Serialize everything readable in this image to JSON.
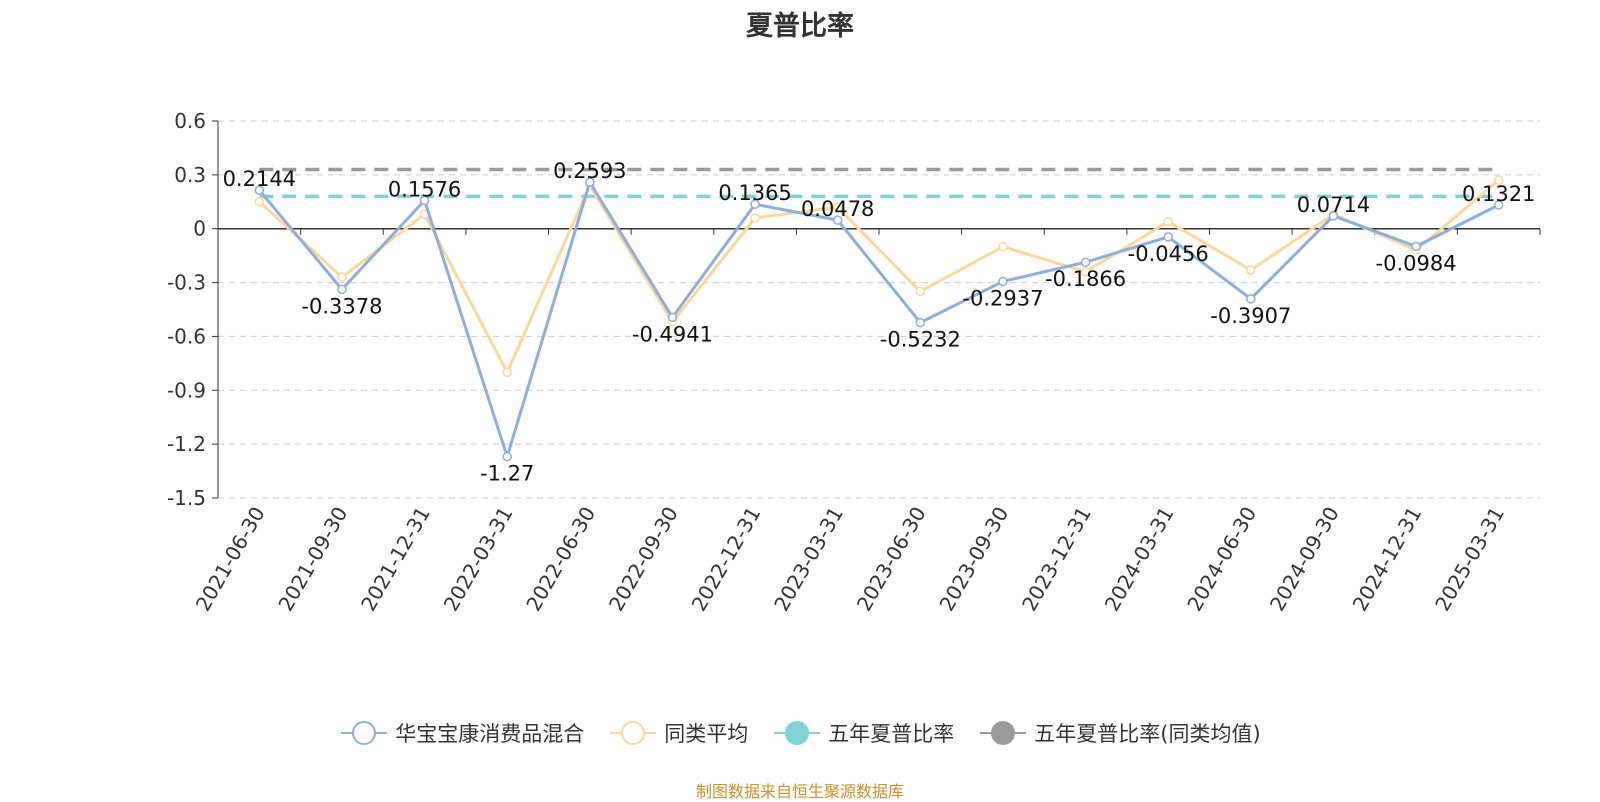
{
  "chart_data": {
    "type": "line",
    "title": "夏普比率",
    "categories": [
      "2021-06-30",
      "2021-09-30",
      "2021-12-31",
      "2022-03-31",
      "2022-06-30",
      "2022-09-30",
      "2022-12-31",
      "2023-03-31",
      "2023-06-30",
      "2023-09-30",
      "2023-12-31",
      "2024-03-31",
      "2024-06-30",
      "2024-09-30",
      "2024-12-31",
      "2025-03-31"
    ],
    "ylim": [
      -1.5,
      0.6
    ],
    "yticks": [
      0.6,
      0.3,
      0,
      -0.3,
      -0.6,
      -0.9,
      -1.2,
      -1.5
    ],
    "series": [
      {
        "name": "华宝宝康消费品混合",
        "color": "#8eaedb",
        "values": [
          0.2144,
          -0.3378,
          0.1576,
          -1.27,
          0.2593,
          -0.4941,
          0.1365,
          0.0478,
          -0.5232,
          -0.2937,
          -0.1866,
          -0.0456,
          -0.3907,
          0.0714,
          -0.0984,
          0.1321
        ],
        "labels": [
          "0.2144",
          "-0.3378",
          "0.1576",
          "-1.27",
          "0.2593",
          "-0.4941",
          "0.1365",
          "0.0478",
          "-0.5232",
          "-0.2937",
          "-0.1866",
          "-0.0456",
          "-0.3907",
          "0.0714",
          "-0.0984",
          "0.1321"
        ]
      },
      {
        "name": "同类平均",
        "color": "#fcd898",
        "values": [
          0.15,
          -0.27,
          0.08,
          -0.8,
          0.24,
          -0.52,
          0.06,
          0.12,
          -0.35,
          -0.1,
          -0.24,
          0.04,
          -0.23,
          0.08,
          -0.12,
          0.27
        ]
      },
      {
        "name": "五年夏普比率",
        "color": "#7fd3d5",
        "constant": 0.18
      },
      {
        "name": "五年夏普比率(同类均值)",
        "color": "#9a9a9a",
        "constant": 0.33
      }
    ],
    "grid": true,
    "legend_position": "bottom"
  },
  "source_note": "制图数据来自恒生聚源数据库"
}
